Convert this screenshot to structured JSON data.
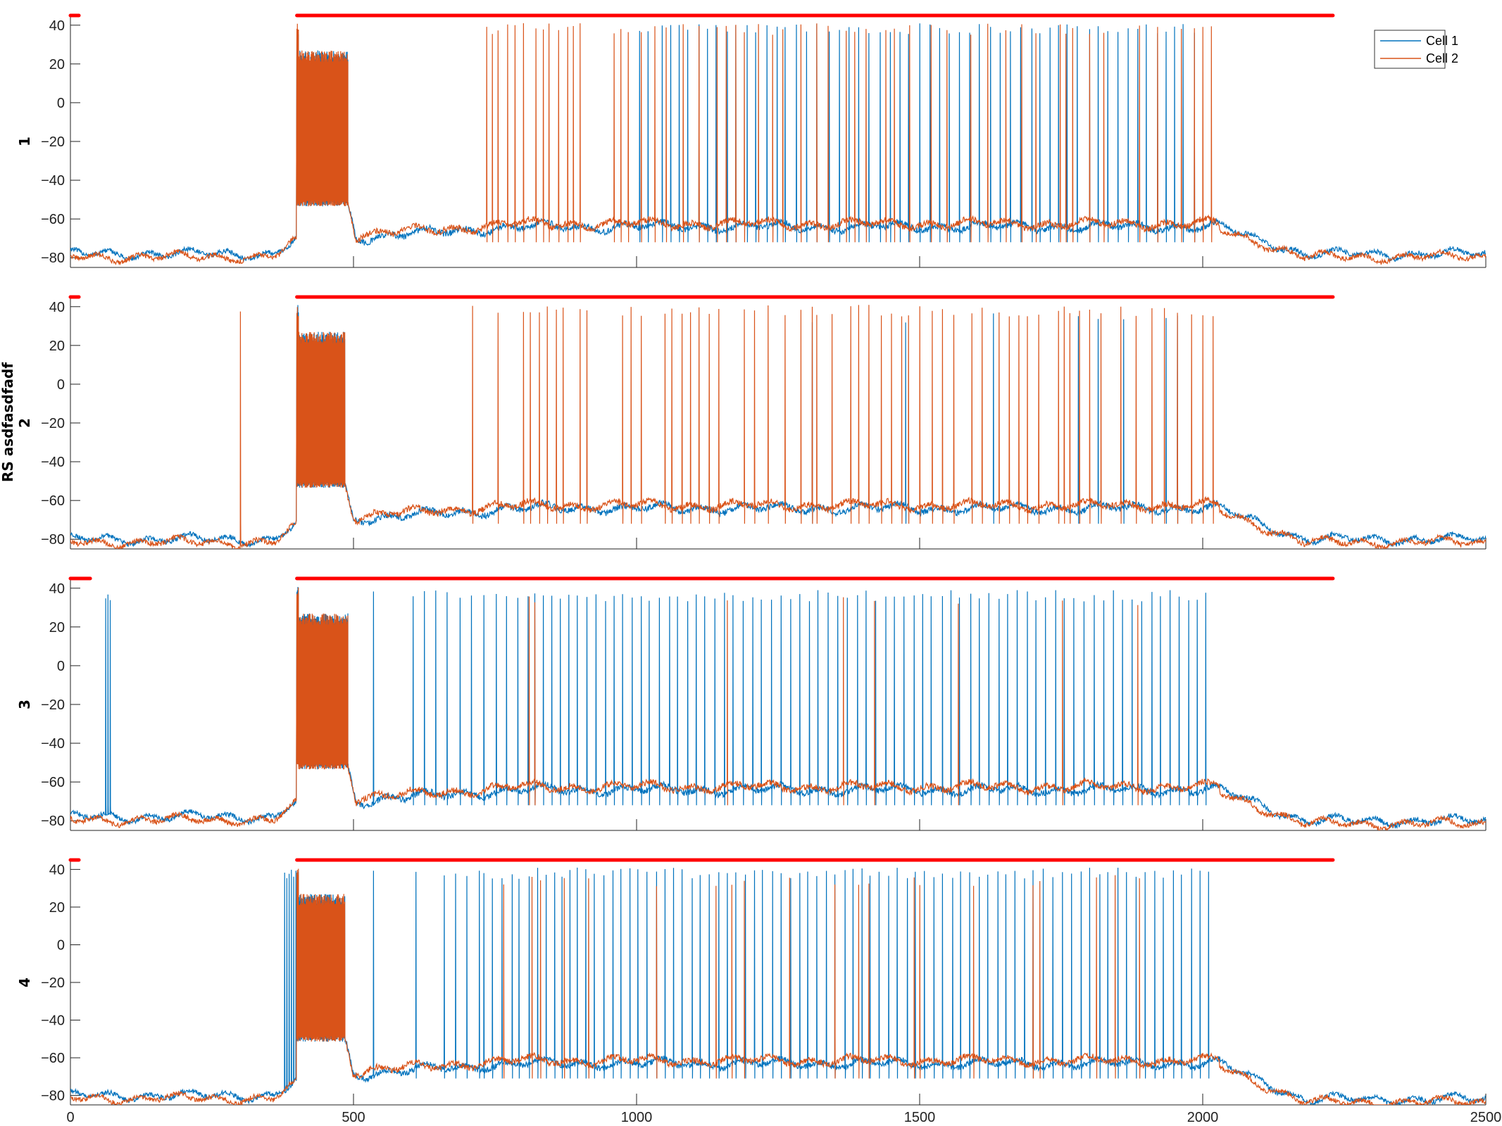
{
  "figure": {
    "shared_ylabel": "RS asdfasdfadf",
    "legend": {
      "position": "top-right",
      "entries": [
        "Cell 1",
        "Cell 2"
      ]
    },
    "colors": {
      "cell1": "#0072BD",
      "cell2": "#D95319",
      "stimulus": "#FF0000"
    }
  },
  "chart_data": [
    {
      "type": "line",
      "panel": "1",
      "ylabel": "1",
      "xlim": [
        0,
        2500
      ],
      "ylim": [
        -85,
        45
      ],
      "yticks": [
        40,
        20,
        0,
        -20,
        -40,
        -60,
        -80
      ],
      "xticks": [
        0,
        500,
        1000,
        1500,
        2000,
        2500
      ],
      "show_x_tick_labels": false,
      "stimulus_bars": [
        [
          0,
          15
        ],
        [
          400,
          2230
        ]
      ],
      "baseline": {
        "pre": -78,
        "tonic_start": 400,
        "tonic_end": 490,
        "tonic_trough": -52,
        "active": -64,
        "active_end": 2030,
        "post": -78
      },
      "series": [
        {
          "name": "Cell 1",
          "color": "#0072BD",
          "spikes": [
            1005,
            1020,
            1045,
            1060,
            1075,
            1090,
            1110,
            1125,
            1140,
            1160,
            1175,
            1195,
            1210,
            1230,
            1248,
            1262,
            1282,
            1300,
            1318,
            1340,
            1358,
            1375,
            1392,
            1410,
            1430,
            1448,
            1465,
            1480,
            1500,
            1518,
            1535,
            1552,
            1570,
            1588,
            1605,
            1625,
            1642,
            1660,
            1678,
            1698,
            1712,
            1730,
            1745,
            1760,
            1778,
            1800,
            1815,
            1832,
            1850,
            1868,
            1885,
            1900,
            1920,
            1935,
            1950,
            1965,
            1985
          ],
          "note_spike_amplitude_mV": 38
        },
        {
          "name": "Cell 2",
          "color": "#D95319",
          "spikes": [
            735,
            745,
            755,
            772,
            785,
            800,
            822,
            835,
            845,
            862,
            878,
            888,
            900,
            960,
            972,
            985,
            1008,
            1032,
            1052,
            1082,
            1110,
            1142,
            1158,
            1175,
            1190,
            1215,
            1240,
            1258,
            1290,
            1318,
            1338,
            1370,
            1385,
            1405,
            1440,
            1455,
            1482,
            1520,
            1548,
            1590,
            1620,
            1652,
            1680,
            1705,
            1748,
            1758,
            1770,
            1800,
            1825,
            1888,
            1920,
            1962,
            1985,
            2000,
            2015
          ],
          "note_spike_amplitude_mV": 38
        }
      ]
    },
    {
      "type": "line",
      "panel": "2",
      "ylabel": "2",
      "xlim": [
        0,
        2500
      ],
      "ylim": [
        -85,
        45
      ],
      "yticks": [
        40,
        20,
        0,
        -20,
        -40,
        -60,
        -80
      ],
      "xticks": [
        0,
        500,
        1000,
        1500,
        2000,
        2500
      ],
      "show_x_tick_labels": false,
      "stimulus_bars": [
        [
          0,
          15
        ],
        [
          400,
          2230
        ]
      ],
      "baseline": {
        "pre": -80,
        "tonic_start": 400,
        "tonic_end": 485,
        "tonic_trough": -52,
        "active": -64,
        "active_end": 2030,
        "post": -80
      },
      "series": [
        {
          "name": "Cell 1",
          "color": "#0072BD",
          "spikes": [
            1310,
            1475,
            1630,
            1780,
            1815,
            1860,
            1935,
            1955
          ],
          "note_spike_amplitude_mV": 34
        },
        {
          "name": "Cell 2",
          "color": "#D95319",
          "spikes": [
            300,
            710,
            755,
            800,
            812,
            828,
            842,
            858,
            870,
            900,
            912,
            975,
            990,
            1008,
            1050,
            1062,
            1080,
            1095,
            1110,
            1128,
            1145,
            1190,
            1208,
            1232,
            1262,
            1290,
            1310,
            1318,
            1345,
            1378,
            1392,
            1410,
            1432,
            1450,
            1468,
            1480,
            1500,
            1522,
            1540,
            1560,
            1592,
            1610,
            1640,
            1658,
            1675,
            1690,
            1710,
            1745,
            1755,
            1765,
            1782,
            1800,
            1820,
            1855,
            1882,
            1910,
            1932,
            1955,
            1980,
            2000,
            2018
          ],
          "note_spike_amplitude_mV": 38
        }
      ]
    },
    {
      "type": "line",
      "panel": "3",
      "ylabel": "3",
      "xlim": [
        0,
        2500
      ],
      "ylim": [
        -85,
        45
      ],
      "yticks": [
        40,
        20,
        0,
        -20,
        -40,
        -60,
        -80
      ],
      "xticks": [
        0,
        500,
        1000,
        1500,
        2000,
        2500
      ],
      "show_x_tick_labels": false,
      "stimulus_bars": [
        [
          0,
          35
        ],
        [
          400,
          2230
        ]
      ],
      "baseline": {
        "pre": -78,
        "tonic_start": 400,
        "tonic_end": 490,
        "tonic_trough": -52,
        "active": -64,
        "active_end": 2030,
        "post": -80
      },
      "series": [
        {
          "name": "Cell 1",
          "color": "#0072BD",
          "spikes": [
            62,
            66,
            70,
            535,
            605,
            625,
            645,
            665,
            688,
            708,
            730,
            752,
            770,
            790,
            808,
            820,
            835,
            850,
            865,
            880,
            895,
            912,
            928,
            945,
            960,
            975,
            992,
            1008,
            1022,
            1040,
            1058,
            1072,
            1090,
            1105,
            1120,
            1138,
            1155,
            1170,
            1188,
            1205,
            1220,
            1238,
            1255,
            1272,
            1288,
            1305,
            1320,
            1338,
            1355,
            1372,
            1390,
            1405,
            1422,
            1440,
            1455,
            1472,
            1490,
            1505,
            1520,
            1540,
            1555,
            1570,
            1590,
            1605,
            1622,
            1640,
            1655,
            1672,
            1690,
            1705,
            1722,
            1740,
            1755,
            1772,
            1790,
            1808,
            1825,
            1842,
            1858,
            1875,
            1892,
            1910,
            1925,
            1942,
            1958,
            1975,
            1990,
            2005
          ],
          "note_spike_amplitude_mV": 36
        },
        {
          "name": "Cell 2",
          "color": "#D95319",
          "spikes": [
            810,
            820,
            1160,
            1365,
            1420,
            1568,
            1752,
            1885
          ],
          "note_spike_amplitude_mV": 34
        }
      ]
    },
    {
      "type": "line",
      "panel": "4",
      "ylabel": "4",
      "xlim": [
        0,
        2500
      ],
      "ylim": [
        -85,
        45
      ],
      "yticks": [
        40,
        20,
        0,
        -20,
        -40,
        -60,
        -80
      ],
      "xticks": [
        0,
        500,
        1000,
        1500,
        2000,
        2500
      ],
      "xtick_labels": [
        "0",
        "500",
        "1000",
        "1500",
        "2000",
        "2500"
      ],
      "show_x_tick_labels": true,
      "stimulus_bars": [
        [
          0,
          15
        ],
        [
          400,
          2230
        ]
      ],
      "baseline": {
        "pre": -80,
        "tonic_start": 400,
        "tonic_end": 485,
        "tonic_trough": -50,
        "active": -63,
        "active_end": 2030,
        "post": -82
      },
      "series": [
        {
          "name": "Cell 1",
          "color": "#0072BD",
          "spikes": [
            378,
            382,
            386,
            390,
            394,
            398,
            535,
            610,
            660,
            680,
            700,
            722,
            730,
            745,
            762,
            780,
            792,
            810,
            825,
            840,
            855,
            868,
            882,
            895,
            910,
            925,
            942,
            958,
            972,
            988,
            1002,
            1018,
            1035,
            1050,
            1065,
            1080,
            1098,
            1112,
            1128,
            1145,
            1160,
            1175,
            1192,
            1208,
            1222,
            1240,
            1255,
            1272,
            1288,
            1302,
            1318,
            1335,
            1350,
            1368,
            1382,
            1398,
            1412,
            1428,
            1445,
            1460,
            1478,
            1492,
            1508,
            1525,
            1540,
            1558,
            1572,
            1588,
            1605,
            1620,
            1638,
            1652,
            1668,
            1685,
            1700,
            1718,
            1735,
            1752,
            1768,
            1785,
            1800,
            1818,
            1832,
            1850,
            1865,
            1882,
            1898,
            1915,
            1930,
            1948,
            1962,
            1980,
            1995,
            2010
          ],
          "note_spike_amplitude_mV": 38
        },
        {
          "name": "Cell 2",
          "color": "#D95319",
          "spikes": [
            765,
            815,
            830,
            872,
            915,
            1035,
            1140,
            1168,
            1190,
            1270,
            1350,
            1392,
            1410,
            1490,
            1500,
            1595,
            1700,
            1712,
            1812,
            1845,
            1888
          ],
          "note_spike_amplitude_mV": 34
        }
      ]
    }
  ]
}
